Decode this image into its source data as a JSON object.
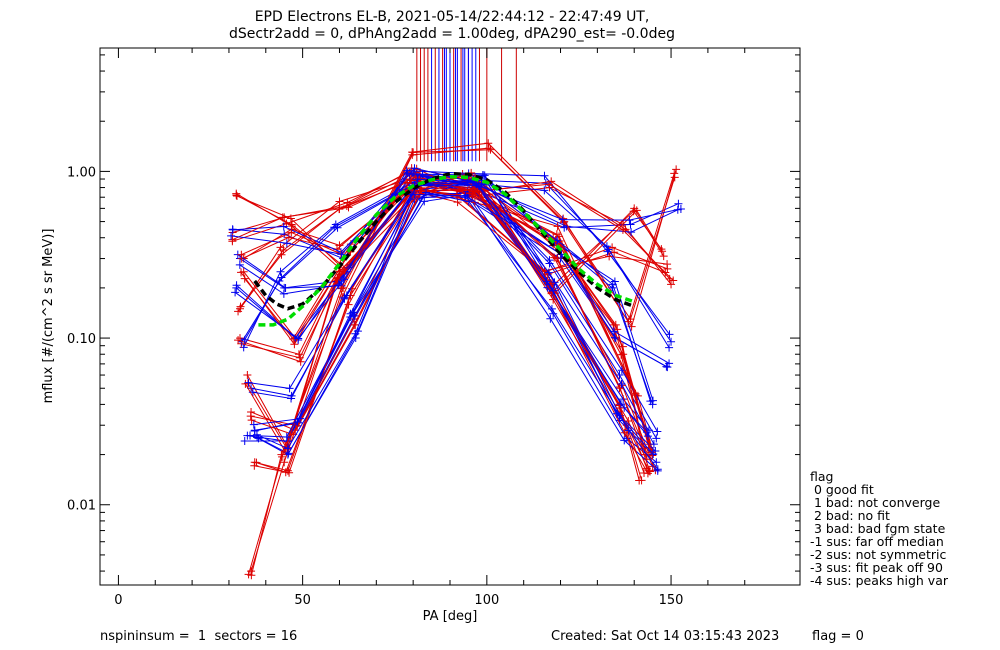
{
  "chart_data": {
    "type": "line",
    "title_line1": "EPD Electrons EL-B, 2021-05-14/22:44:12 - 22:47:49 UT,",
    "title_line2": "dSectr2add = 0, dPhAng2add = 1.00deg, dPA290_est=  -0.0deg",
    "xlabel": "PA [deg]",
    "ylabel": "mflux [#/(cm^2 s sr MeV)]",
    "xlim": [
      -5,
      185
    ],
    "ylim": [
      0.0033,
      5.5
    ],
    "yscale": "log",
    "x_ticks": [
      0,
      50,
      100,
      150
    ],
    "x_tick_labels": [
      "0",
      "50",
      "100",
      "150"
    ],
    "y_ticks": [
      0.01,
      0.1,
      1.0
    ],
    "y_tick_labels": [
      "0.01",
      "0.10",
      "1.00"
    ],
    "series": [
      {
        "color": "#000000",
        "style": "dashed",
        "x": [
          37,
          40,
          43,
          46,
          50,
          55,
          60,
          65,
          70,
          75,
          80,
          85,
          90,
          95,
          100,
          105,
          110,
          115,
          120,
          125,
          130,
          135,
          140
        ],
        "y": [
          0.22,
          0.18,
          0.16,
          0.15,
          0.16,
          0.2,
          0.27,
          0.37,
          0.5,
          0.65,
          0.79,
          0.9,
          0.97,
          0.96,
          0.89,
          0.75,
          0.58,
          0.43,
          0.32,
          0.25,
          0.2,
          0.17,
          0.155
        ]
      },
      {
        "color": "#00dd00",
        "style": "dashed",
        "x": [
          38,
          42,
          46,
          50,
          55,
          60,
          65,
          70,
          75,
          80,
          85,
          90,
          95,
          100,
          105,
          110,
          115,
          120,
          125,
          130,
          135,
          140
        ],
        "y": [
          0.12,
          0.12,
          0.13,
          0.155,
          0.2,
          0.28,
          0.4,
          0.55,
          0.7,
          0.82,
          0.89,
          0.93,
          0.92,
          0.86,
          0.73,
          0.57,
          0.44,
          0.34,
          0.26,
          0.21,
          0.18,
          0.165
        ]
      }
    ],
    "sample_tracks_red": [
      {
        "x": [
          32,
          47,
          62,
          80,
          97,
          118,
          135,
          144
        ],
        "y": [
          0.72,
          0.48,
          0.26,
          0.98,
          0.84,
          0.4,
          0.12,
          0.022
        ]
      },
      {
        "x": [
          34,
          48,
          63,
          81,
          98,
          119,
          136,
          145
        ],
        "y": [
          0.25,
          0.1,
          0.33,
          0.95,
          0.8,
          0.3,
          0.05,
          0.017
        ]
      },
      {
        "x": [
          33,
          44,
          60,
          79,
          96,
          120,
          137,
          143
        ],
        "y": [
          0.15,
          0.35,
          0.66,
          0.9,
          0.75,
          0.35,
          0.08,
          0.02
        ]
      },
      {
        "x": [
          35,
          46,
          59,
          81,
          94,
          117,
          136,
          142
        ],
        "y": [
          0.06,
          0.022,
          0.22,
          0.82,
          0.87,
          0.22,
          0.04,
          0.014
        ]
      },
      {
        "x": [
          36,
          48,
          64,
          82,
          99,
          118,
          138,
          144
        ],
        "y": [
          0.036,
          0.028,
          0.12,
          0.76,
          0.78,
          0.17,
          0.03,
          0.016
        ]
      },
      {
        "x": [
          36,
          45,
          61,
          80,
          101,
          121,
          139,
          151
        ],
        "y": [
          0.004,
          0.018,
          0.2,
          1.3,
          1.35,
          0.5,
          0.13,
          0.92
        ]
      },
      {
        "x": [
          31,
          45,
          62,
          81,
          96,
          117,
          137,
          150
        ],
        "y": [
          0.43,
          0.53,
          0.62,
          0.99,
          0.71,
          0.8,
          0.48,
          0.21
        ]
      },
      {
        "x": [
          34,
          47,
          60,
          79,
          92,
          116,
          134,
          149
        ],
        "y": [
          0.3,
          0.45,
          0.36,
          0.78,
          0.73,
          0.25,
          0.35,
          0.26
        ]
      },
      {
        "x": [
          37,
          46,
          63,
          80,
          95,
          118,
          140,
          148
        ],
        "y": [
          0.018,
          0.016,
          0.18,
          0.71,
          0.9,
          0.19,
          0.6,
          0.31
        ]
      },
      {
        "x": [
          33,
          49,
          60,
          82,
          97,
          119,
          141,
          145
        ],
        "y": [
          0.1,
          0.08,
          0.25,
          0.85,
          0.74,
          0.42,
          0.045,
          0.021
        ]
      }
    ],
    "sample_tracks_blue": [
      {
        "x": [
          31,
          45,
          61,
          80,
          97,
          117,
          136,
          146
        ],
        "y": [
          0.45,
          0.42,
          0.3,
          0.96,
          0.82,
          0.28,
          0.06,
          0.025
        ]
      },
      {
        "x": [
          32,
          48,
          62,
          82,
          99,
          119,
          134,
          145
        ],
        "y": [
          0.2,
          0.1,
          0.25,
          0.9,
          0.95,
          0.38,
          0.2,
          0.04
        ]
      },
      {
        "x": [
          35,
          46,
          63,
          81,
          96,
          117,
          137,
          144
        ],
        "y": [
          0.026,
          0.024,
          0.14,
          0.79,
          0.8,
          0.2,
          0.043,
          0.028
        ]
      },
      {
        "x": [
          34,
          44,
          59,
          80,
          98,
          121,
          139,
          152
        ],
        "y": [
          0.088,
          0.25,
          0.48,
          0.86,
          0.76,
          0.46,
          0.48,
          0.64
        ]
      },
      {
        "x": [
          37,
          49,
          64,
          83,
          95,
          118,
          138,
          146
        ],
        "y": [
          0.028,
          0.031,
          0.13,
          0.73,
          0.74,
          0.14,
          0.025,
          0.018
        ]
      },
      {
        "x": [
          33,
          45,
          60,
          79,
          95,
          116,
          133,
          150
        ],
        "y": [
          0.3,
          0.2,
          0.22,
          0.98,
          0.89,
          0.85,
          0.34,
          0.095
        ]
      },
      {
        "x": [
          36,
          47,
          62,
          81,
          100,
          118,
          136,
          145
        ],
        "y": [
          0.05,
          0.045,
          0.18,
          0.82,
          0.86,
          0.21,
          0.032,
          0.02
        ]
      },
      {
        "x": [
          38,
          46,
          65,
          80,
          94,
          120,
          135,
          149
        ],
        "y": [
          0.025,
          0.02,
          0.11,
          0.7,
          0.7,
          0.3,
          0.1,
          0.067
        ]
      }
    ],
    "spike_lines": [
      {
        "color": "#cc0000",
        "x": [
          81,
          82,
          83,
          84,
          86,
          88,
          90,
          91,
          93,
          95,
          98,
          100,
          104,
          108
        ]
      },
      {
        "color": "#0000ff",
        "x": [
          85,
          87,
          88.5,
          89,
          90,
          91.5,
          92,
          93.5,
          94,
          95,
          96,
          97
        ]
      }
    ],
    "legend_title": "flag",
    "legend_items": [
      " 0 good fit",
      " 1 bad: not converge",
      " 2 bad: no fit",
      " 3 bad: bad fgm state",
      "-1 sus: far off median",
      "-2 sus: not symmetric",
      "-3 sus: fit peak off 90",
      "-4 sus: peaks high var"
    ]
  },
  "footer": {
    "left": "nspininsum =  1  sectors = 16",
    "created": "Created: Sat Oct 14 03:15:43 2023",
    "flag": "flag = 0"
  },
  "colors": {
    "red": "#dd0000",
    "blue": "#0000ee",
    "black_fit": "#000000",
    "green_fit": "#00dd00"
  }
}
